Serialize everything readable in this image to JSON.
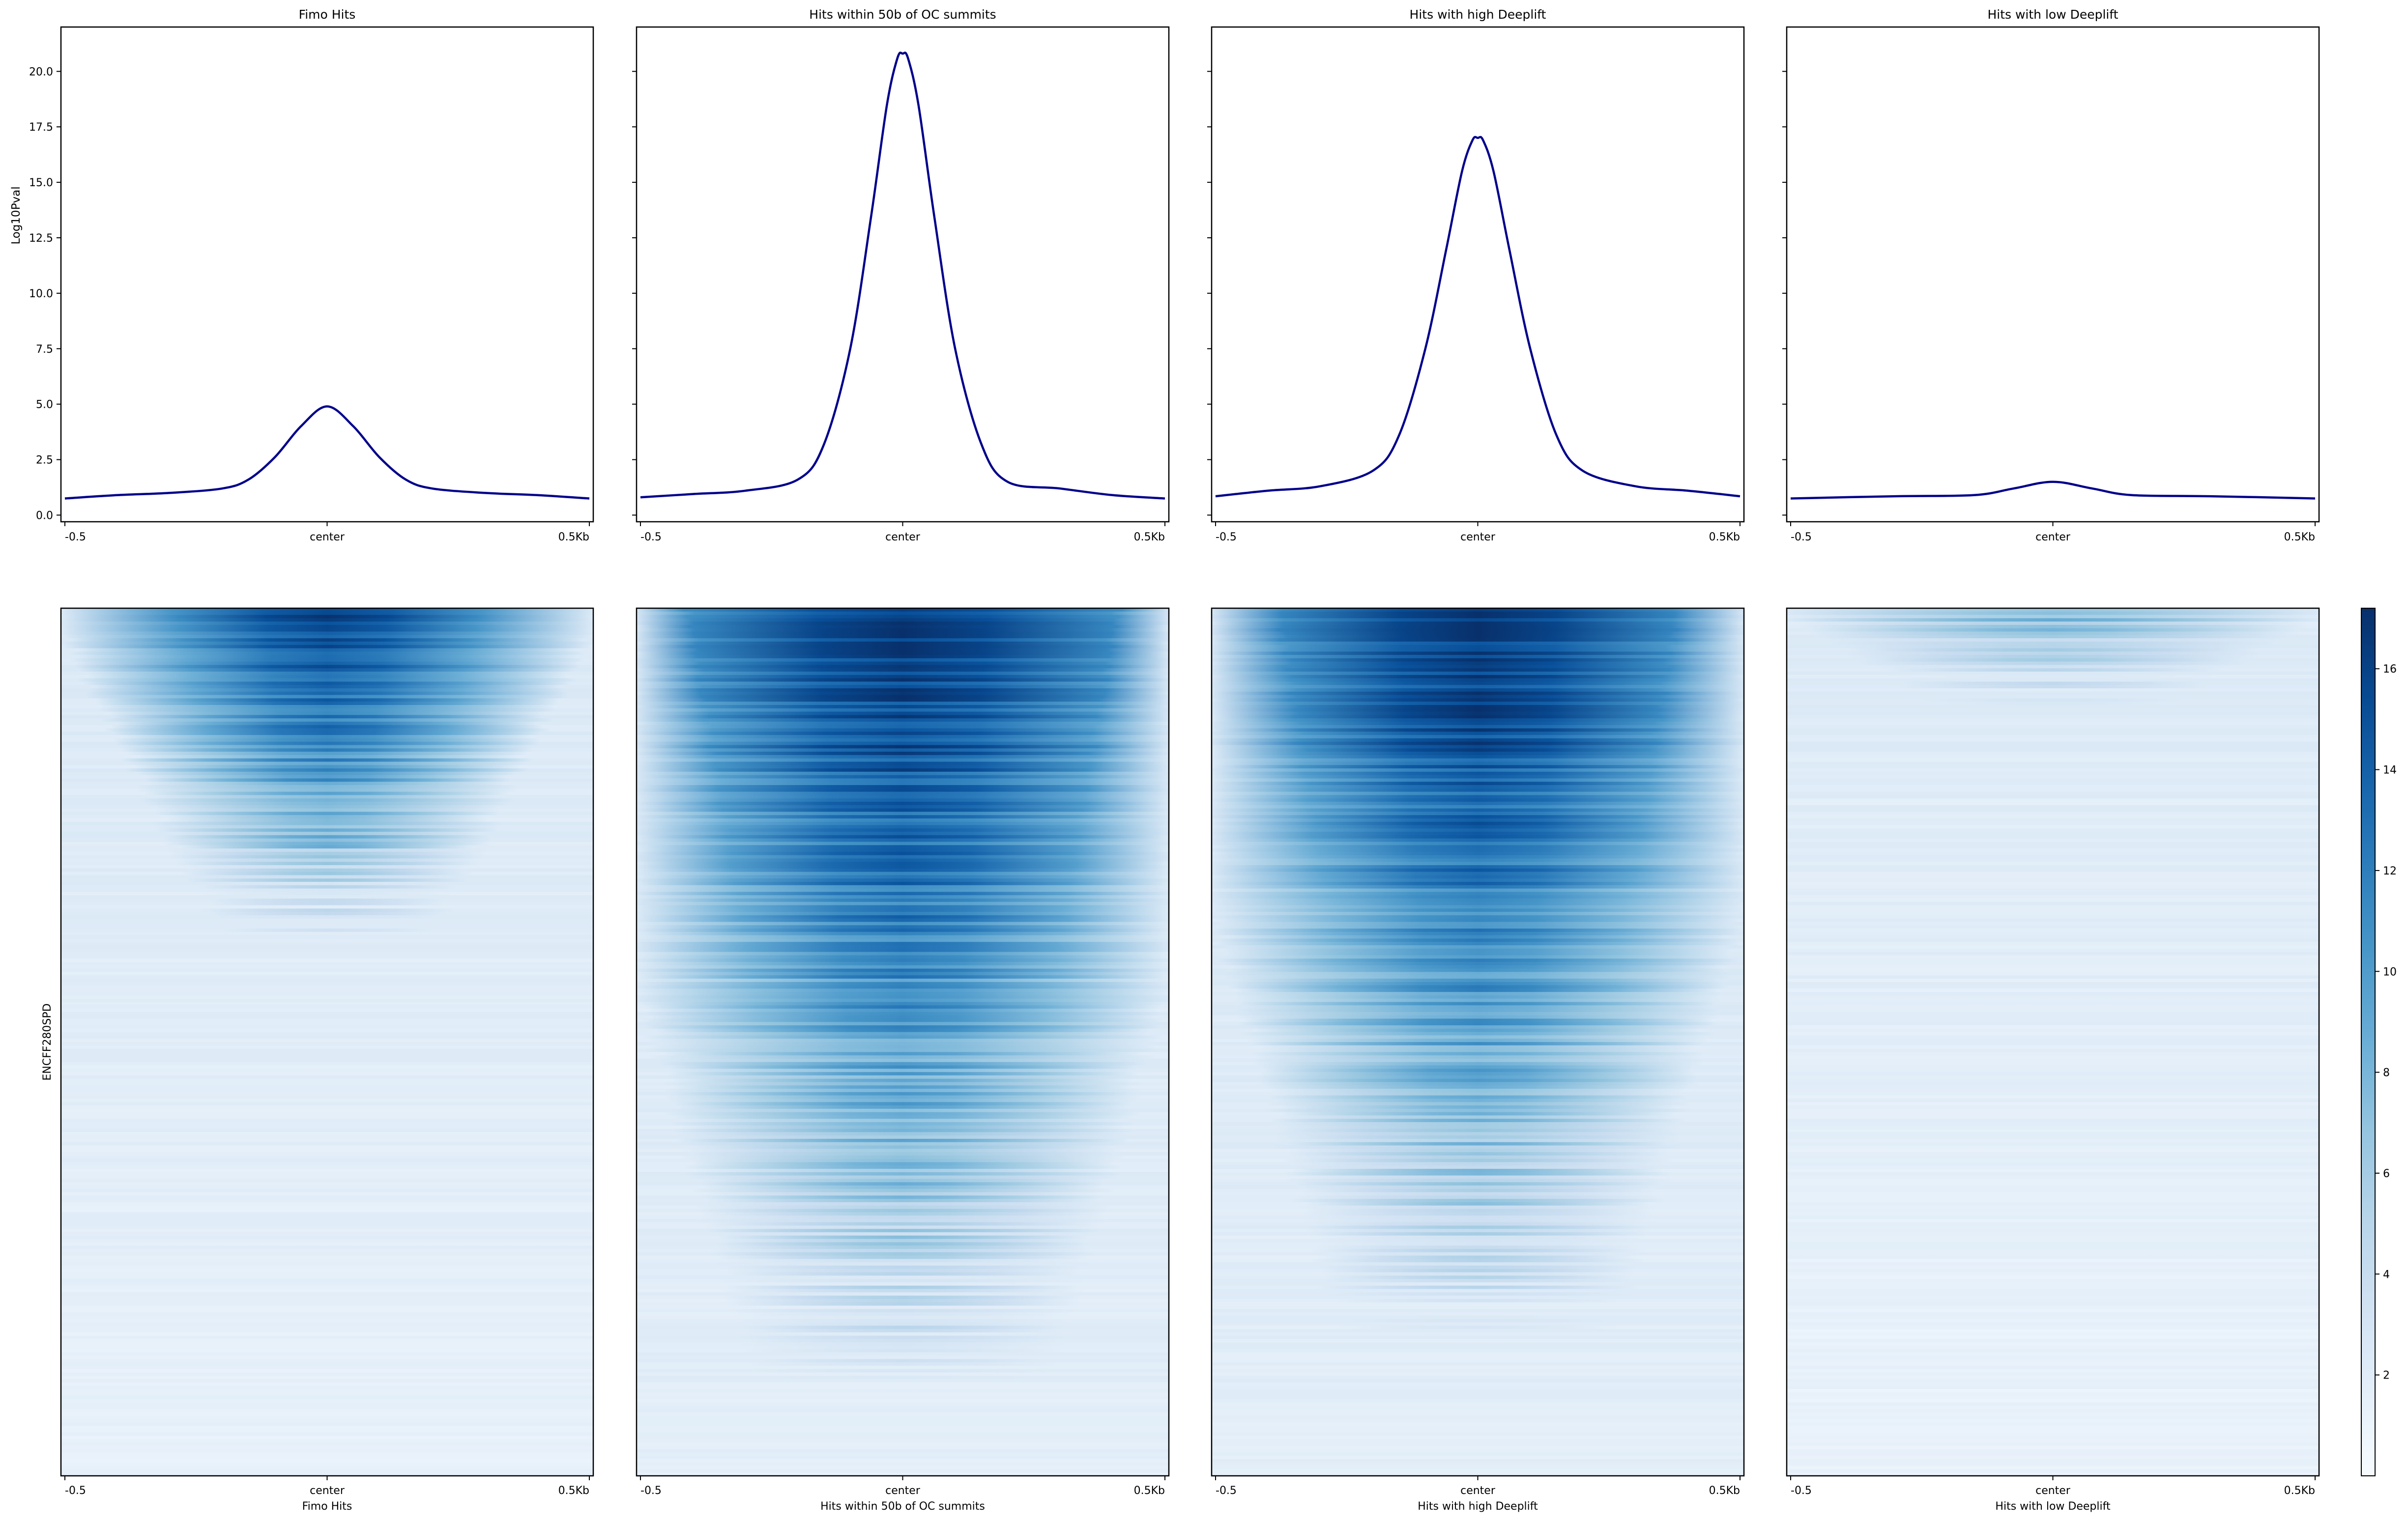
{
  "chart_data": [
    {
      "type": "line",
      "title": "Fimo Hits",
      "ylabel": "Log10Pval",
      "ylim": [
        -0.3,
        22
      ],
      "yticks": [
        "0.0",
        "2.5",
        "5.0",
        "7.5",
        "10.0",
        "12.5",
        "15.0",
        "17.5",
        "20.0"
      ],
      "xticks": [
        "-0.5",
        "center",
        "0.5Kb"
      ],
      "color": "#00008b",
      "x": [
        -500,
        -400,
        -300,
        -200,
        -150,
        -100,
        -50,
        0,
        50,
        100,
        150,
        200,
        300,
        400,
        500
      ],
      "y": [
        0.75,
        0.9,
        1.0,
        1.2,
        1.6,
        2.6,
        4.0,
        4.9,
        4.0,
        2.6,
        1.6,
        1.2,
        1.0,
        0.9,
        0.75
      ]
    },
    {
      "type": "line",
      "title": "Hits within 50b of OC summits",
      "xticks": [
        "-0.5",
        "center",
        "0.5Kb"
      ],
      "color": "#00008b",
      "x": [
        -500,
        -400,
        -300,
        -200,
        -150,
        -100,
        -60,
        -30,
        -10,
        0,
        10,
        30,
        60,
        100,
        150,
        200,
        300,
        400,
        500
      ],
      "y": [
        0.8,
        0.95,
        1.1,
        1.6,
        3.2,
        7.5,
        13.5,
        18.5,
        20.6,
        20.8,
        20.6,
        18.5,
        13.5,
        7.5,
        3.2,
        1.5,
        1.2,
        0.9,
        0.75
      ]
    },
    {
      "type": "line",
      "title": "Hits with high Deeplift",
      "xticks": [
        "-0.5",
        "center",
        "0.5Kb"
      ],
      "color": "#00008b",
      "x": [
        -500,
        -400,
        -300,
        -200,
        -150,
        -100,
        -60,
        -30,
        -10,
        0,
        10,
        30,
        60,
        100,
        150,
        200,
        300,
        400,
        500
      ],
      "y": [
        0.85,
        1.1,
        1.3,
        2.0,
        3.6,
        7.5,
        12.0,
        15.5,
        16.9,
        17.0,
        16.9,
        15.5,
        12.0,
        7.5,
        3.6,
        2.0,
        1.3,
        1.1,
        0.85
      ]
    },
    {
      "type": "line",
      "title": "Hits with low Deeplift",
      "xticks": [
        "-0.5",
        "center",
        "0.5Kb"
      ],
      "color": "#00008b",
      "x": [
        -500,
        -300,
        -150,
        -75,
        0,
        75,
        150,
        300,
        500
      ],
      "y": [
        0.75,
        0.85,
        0.9,
        1.2,
        1.5,
        1.2,
        0.9,
        0.85,
        0.75
      ]
    },
    {
      "type": "heatmap",
      "xlabel": "Fimo Hits",
      "ylabel": "ENCFF280SPD",
      "xticks": [
        "-0.5",
        "center",
        "0.5Kb"
      ],
      "colormap": "Blues",
      "center_intensity": 0.95,
      "decay_depth": 0.38,
      "core_width": 0.1,
      "background_intensity": 0.06
    },
    {
      "type": "heatmap",
      "xlabel": "Hits within 50b of OC summits",
      "xticks": [
        "-0.5",
        "center",
        "0.5Kb"
      ],
      "colormap": "Blues",
      "center_intensity": 1.0,
      "decay_depth": 0.9,
      "core_width": 0.14,
      "background_intensity": 0.08
    },
    {
      "type": "heatmap",
      "xlabel": "Hits with high Deeplift",
      "xticks": [
        "-0.5",
        "center",
        "0.5Kb"
      ],
      "colormap": "Blues",
      "center_intensity": 1.0,
      "decay_depth": 0.85,
      "core_width": 0.13,
      "background_intensity": 0.08
    },
    {
      "type": "heatmap",
      "xlabel": "Hits with low Deeplift",
      "xticks": [
        "-0.5",
        "center",
        "0.5Kb"
      ],
      "colormap": "Blues",
      "center_intensity": 0.3,
      "decay_depth": 0.12,
      "core_width": 0.1,
      "background_intensity": 0.05
    }
  ],
  "colorbar": {
    "min": 0,
    "max": 17.2,
    "ticks": [
      "2",
      "4",
      "6",
      "8",
      "10",
      "12",
      "14",
      "16"
    ],
    "colormap": "Blues"
  }
}
